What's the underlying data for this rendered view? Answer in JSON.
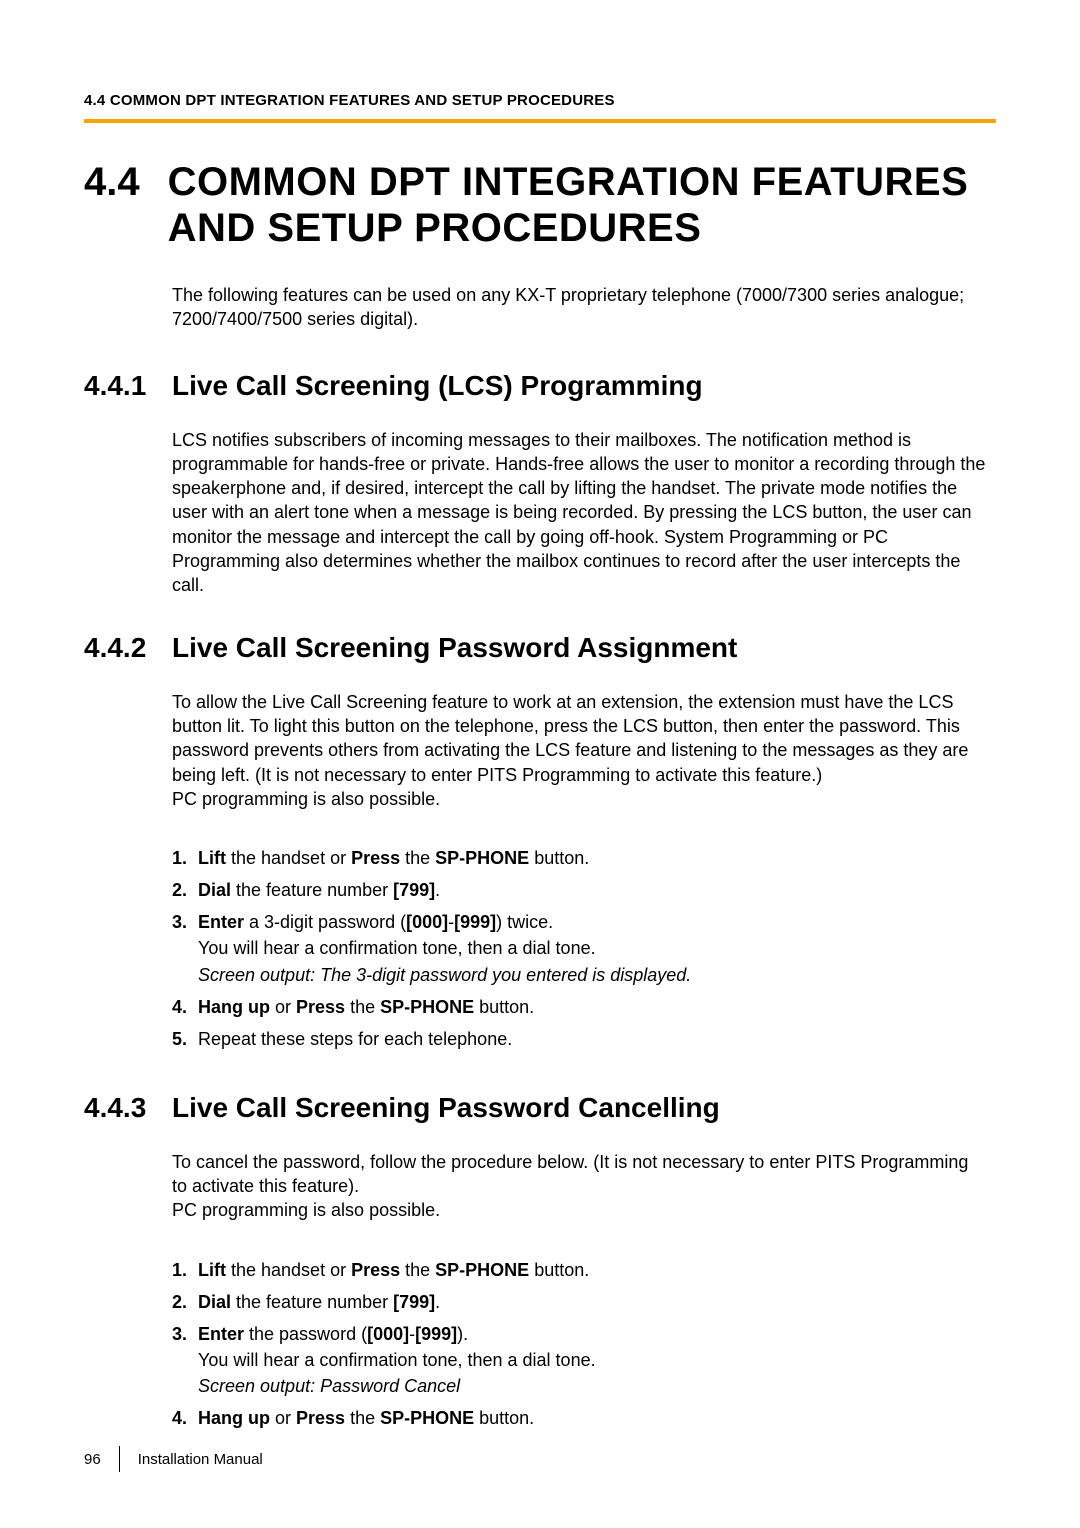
{
  "colors": {
    "accent": "#f7a600",
    "text": "#000000",
    "background": "#ffffff"
  },
  "typography": {
    "body_fontsize_pt": 13,
    "h1_fontsize_pt": 30,
    "h2_fontsize_pt": 21,
    "footer_fontsize_pt": 11
  },
  "header": {
    "running": "4.4 COMMON DPT INTEGRATION FEATURES AND SETUP PROCEDURES"
  },
  "section": {
    "number": "4.4",
    "title": "COMMON DPT INTEGRATION FEATURES AND SETUP PROCEDURES",
    "intro": "The following features can be used on any KX-T proprietary telephone (7000/7300 series analogue; 7200/7400/7500 series digital)."
  },
  "subs": [
    {
      "number": "4.4.1",
      "title": "Live Call Screening (LCS) Programming",
      "body": "LCS notifies subscribers of incoming messages to their mailboxes. The notification method is programmable for hands-free or private. Hands-free allows the user to monitor a recording through the speakerphone and, if desired, intercept the call by lifting the handset. The private mode notifies the user with an alert tone when a message is being recorded. By pressing the LCS button, the user can monitor the message and intercept the call by going off-hook. System Programming or PC Programming also determines whether the mailbox continues to record after the user intercepts the call."
    },
    {
      "number": "4.4.2",
      "title": "Live Call Screening Password Assignment",
      "body": "To allow the Live Call Screening feature to work at an extension, the extension must have the LCS button lit. To light this button on the telephone, press the LCS button, then enter the password. This password prevents others from activating the LCS feature and listening to the messages as they are being left. (It is not necessary to enter PITS Programming to activate this feature.)\nPC programming is also possible.",
      "steps": [
        {
          "marker": "1.",
          "seg": [
            {
              "t": "Lift",
              "b": true
            },
            {
              "t": " the handset or "
            },
            {
              "t": "Press",
              "b": true
            },
            {
              "t": " the "
            },
            {
              "t": "SP-PHONE",
              "b": true
            },
            {
              "t": " button."
            }
          ]
        },
        {
          "marker": "2.",
          "seg": [
            {
              "t": "Dial",
              "b": true
            },
            {
              "t": " the feature number "
            },
            {
              "t": "[799]",
              "b": true
            },
            {
              "t": "."
            }
          ]
        },
        {
          "marker": "3.",
          "seg": [
            {
              "t": "Enter",
              "b": true
            },
            {
              "t": " a 3-digit password ("
            },
            {
              "t": "[000]",
              "b": true
            },
            {
              "t": "-"
            },
            {
              "t": "[999]",
              "b": true
            },
            {
              "t": ") twice."
            }
          ],
          "more": [
            {
              "seg": [
                {
                  "t": "You will hear a confirmation tone, then a dial tone."
                }
              ]
            },
            {
              "seg": [
                {
                  "t": "Screen output: The 3-digit password you entered is displayed.",
                  "i": true
                }
              ]
            }
          ]
        },
        {
          "marker": "4.",
          "seg": [
            {
              "t": "Hang up",
              "b": true
            },
            {
              "t": " or "
            },
            {
              "t": "Press",
              "b": true
            },
            {
              "t": " the "
            },
            {
              "t": "SP-PHONE",
              "b": true
            },
            {
              "t": " button."
            }
          ]
        },
        {
          "marker": "5.",
          "seg": [
            {
              "t": "Repeat these steps for each telephone."
            }
          ]
        }
      ]
    },
    {
      "number": "4.4.3",
      "title": "Live Call Screening Password Cancelling",
      "body": "To cancel the password, follow the procedure below. (It is not necessary to enter PITS Programming to activate this feature).\nPC programming is also possible.",
      "steps": [
        {
          "marker": "1.",
          "seg": [
            {
              "t": "Lift",
              "b": true
            },
            {
              "t": " the handset or "
            },
            {
              "t": "Press",
              "b": true
            },
            {
              "t": " the "
            },
            {
              "t": "SP-PHONE",
              "b": true
            },
            {
              "t": " button."
            }
          ]
        },
        {
          "marker": "2.",
          "seg": [
            {
              "t": "Dial",
              "b": true
            },
            {
              "t": " the feature number "
            },
            {
              "t": "[799]",
              "b": true
            },
            {
              "t": "."
            }
          ]
        },
        {
          "marker": "3.",
          "seg": [
            {
              "t": "Enter",
              "b": true
            },
            {
              "t": " the password ("
            },
            {
              "t": "[000]",
              "b": true
            },
            {
              "t": "-"
            },
            {
              "t": "[999]",
              "b": true
            },
            {
              "t": ")."
            }
          ],
          "more": [
            {
              "seg": [
                {
                  "t": "You will hear a confirmation tone, then a dial tone."
                }
              ]
            },
            {
              "seg": [
                {
                  "t": "Screen output: Password Cancel",
                  "i": true
                }
              ]
            }
          ]
        },
        {
          "marker": "4.",
          "seg": [
            {
              "t": "Hang up",
              "b": true
            },
            {
              "t": " or "
            },
            {
              "t": "Press",
              "b": true
            },
            {
              "t": " the "
            },
            {
              "t": "SP-PHONE",
              "b": true
            },
            {
              "t": " button."
            }
          ]
        }
      ]
    }
  ],
  "footer": {
    "page": "96",
    "doc": "Installation Manual"
  }
}
